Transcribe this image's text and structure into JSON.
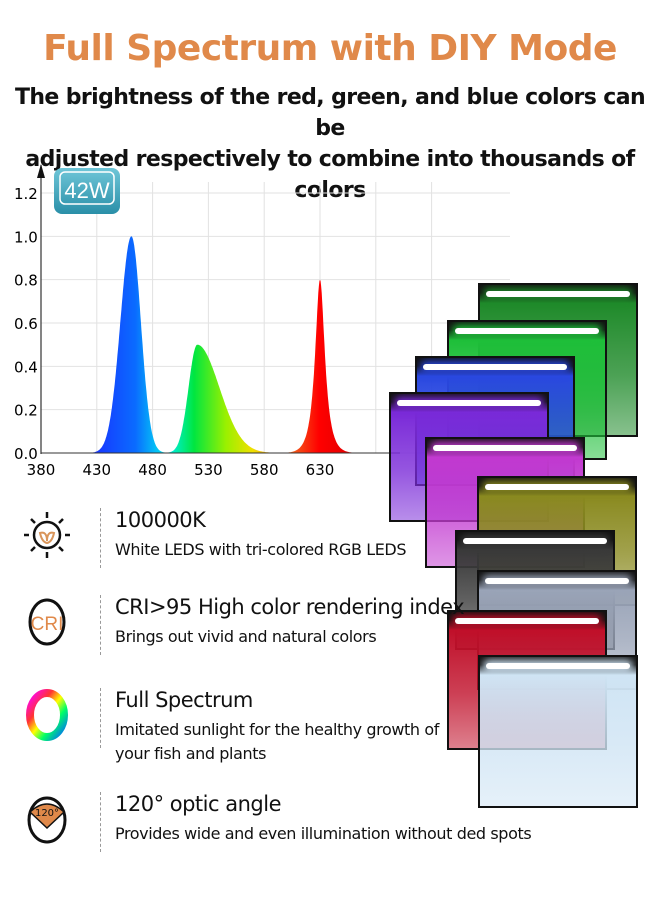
{
  "header": {
    "title": "Full Spectrum with DIY Mode",
    "subtitle_line1": "The brightness of the red, green, and blue colors can be",
    "subtitle_line2": "adjusted respectively to combine into thousands of colors"
  },
  "badge": "42W",
  "chart_data": {
    "type": "area",
    "x_ticks": [
      "380",
      "430",
      "480",
      "530",
      "580",
      "630"
    ],
    "y_ticks": [
      "0.0",
      "0.2",
      "0.4",
      "0.6",
      "0.8",
      "1.0",
      "1.2"
    ],
    "xlim": [
      380,
      730
    ],
    "ylim": [
      0,
      1.2
    ],
    "grid": true,
    "peaks": [
      {
        "color": "blue",
        "wavelength": 461,
        "value": 1.0
      },
      {
        "color": "green",
        "wavelength": 520,
        "value": 0.5
      },
      {
        "color": "red",
        "wavelength": 630,
        "value": 0.8
      }
    ],
    "trough": {
      "wavelength": 494,
      "value": 0.12
    }
  },
  "tank_colors": [
    "#1f8a2a",
    "#1fbf3a",
    "#2a48e0",
    "#7a2ad8",
    "#c23ad0",
    "#8a8a20",
    "#3a3a3a",
    "#9aa4b8",
    "#c0102a",
    "#cfe4f4"
  ],
  "features": [
    {
      "icon": "sun-leaf-icon",
      "title": "100000K",
      "desc": [
        "White LEDS with tri-colored RGB LEDS"
      ]
    },
    {
      "icon": "cri-icon",
      "title": "CRI>95  High color rendering index",
      "desc": [
        "Brings out vivid and natural colors"
      ]
    },
    {
      "icon": "rainbow-ring-icon",
      "title": "Full Spectrum",
      "desc": [
        "Imitated sunlight for the healthy growth of",
        "your fish and plants"
      ]
    },
    {
      "icon": "angle-120-icon",
      "title": "120° optic angle",
      "desc": [
        "Provides wide and even illumination without ded spots"
      ]
    }
  ]
}
